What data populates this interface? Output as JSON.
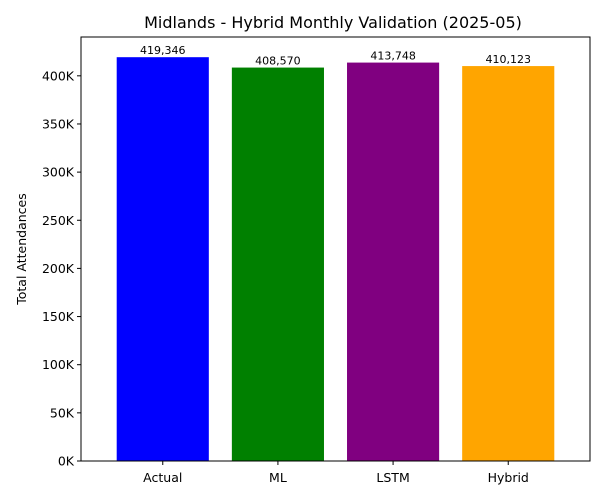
{
  "chart_data": {
    "type": "bar",
    "title": "Midlands - Hybrid Monthly Validation (2025-05)",
    "xlabel": "",
    "ylabel": "Total Attendances",
    "categories": [
      "Actual",
      "ML",
      "LSTM",
      "Hybrid"
    ],
    "values": [
      419346,
      408570,
      413748,
      410123
    ],
    "value_labels": [
      "419,346",
      "408,570",
      "413,748",
      "410,123"
    ],
    "colors": [
      "#0000ff",
      "#008000",
      "#800080",
      "#ffa500"
    ],
    "ylim": [
      0,
      440314
    ],
    "yticks": [
      0,
      50000,
      100000,
      150000,
      200000,
      250000,
      300000,
      350000,
      400000
    ],
    "ytick_labels": [
      "0K",
      "50K",
      "100K",
      "150K",
      "200K",
      "250K",
      "300K",
      "350K",
      "400K"
    ],
    "grid": false,
    "legend": "none"
  }
}
